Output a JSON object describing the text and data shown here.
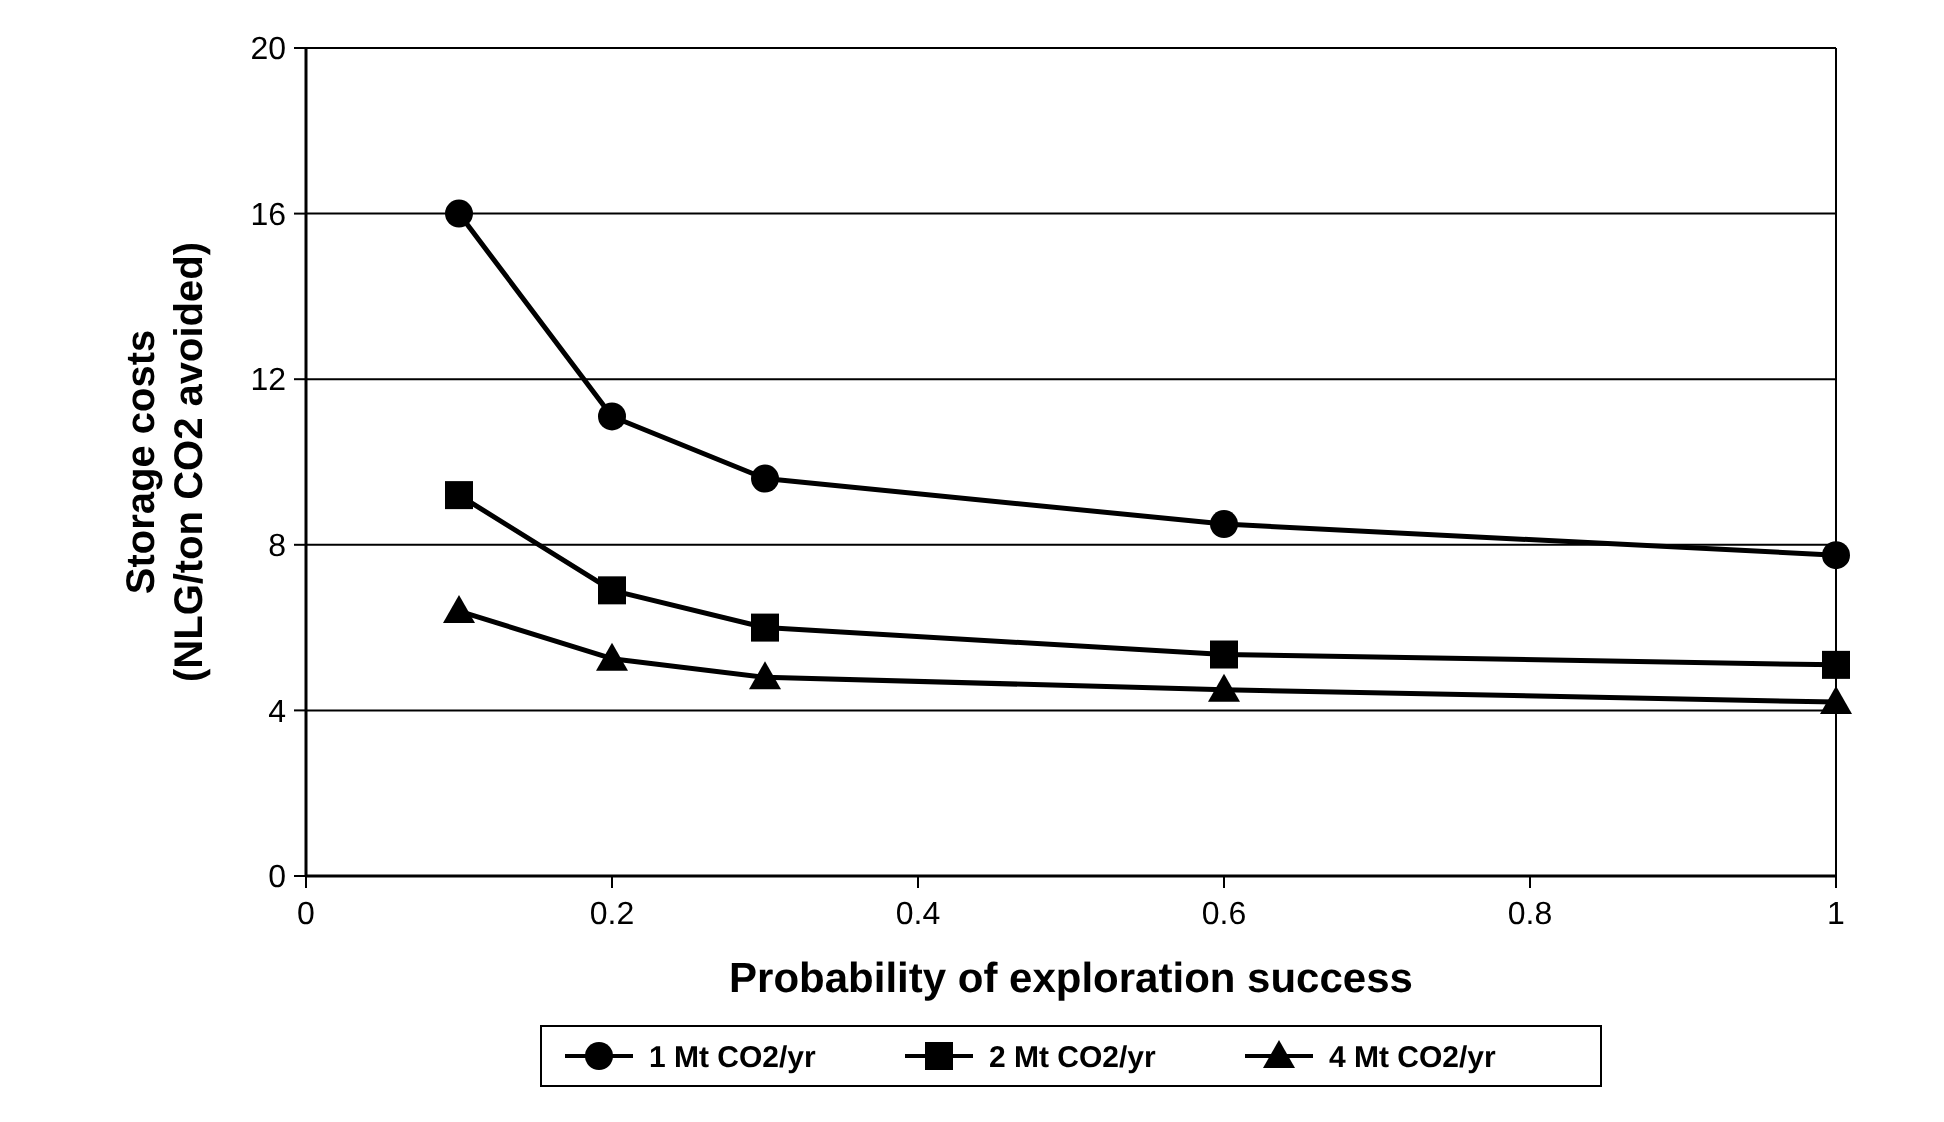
{
  "chart_data": {
    "type": "line",
    "xlabel": "Probability of exploration success",
    "ylabel": "Storage costs\n(NLG/ton CO2 avoided)",
    "x": [
      0.1,
      0.2,
      0.3,
      0.6,
      1
    ],
    "series": [
      {
        "name": "1 Mt CO2/yr",
        "color": "#000000",
        "marker": "circle",
        "values": [
          16,
          11.1,
          9.6,
          8.5,
          7.75
        ]
      },
      {
        "name": "2 Mt CO2/yr",
        "color": "#000000",
        "marker": "square",
        "values": [
          9.2,
          6.9,
          6.0,
          5.35,
          5.1
        ]
      },
      {
        "name": "4 Mt CO2/yr",
        "color": "#000000",
        "marker": "triangle",
        "values": [
          6.4,
          5.25,
          4.8,
          4.5,
          4.2
        ]
      }
    ],
    "xlim": [
      0,
      1
    ],
    "xticks": [
      0,
      0.2,
      0.4,
      0.6,
      0.8,
      1
    ],
    "ylim": [
      0,
      20
    ],
    "yticks": [
      0,
      4,
      8,
      12,
      16,
      20
    ],
    "grid": "y",
    "legend": "bottom",
    "line_style": "solid"
  }
}
